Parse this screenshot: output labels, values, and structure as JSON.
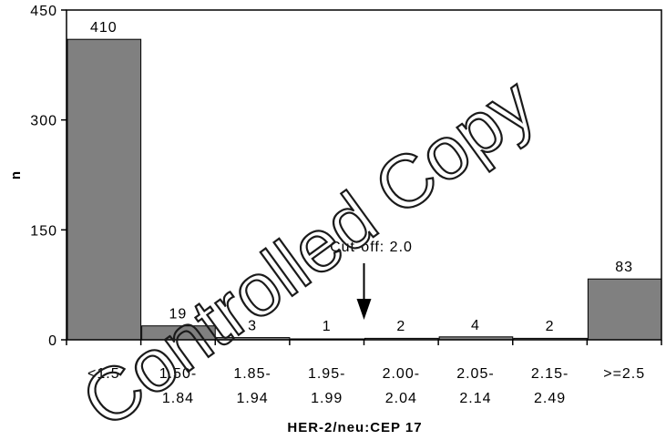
{
  "chart_data": {
    "type": "bar",
    "categories": [
      [
        "<1.5"
      ],
      [
        "1.50-",
        "1.84"
      ],
      [
        "1.85-",
        "1.94"
      ],
      [
        "1.95-",
        "1.99"
      ],
      [
        "2.00-",
        "2.04"
      ],
      [
        "2.05-",
        "2.14"
      ],
      [
        "2.15-",
        "2.49"
      ],
      [
        ">=2.5"
      ]
    ],
    "values": [
      410,
      19,
      3,
      1,
      2,
      4,
      2,
      83
    ],
    "data_labels": [
      "410",
      "19",
      "3",
      "1",
      "2",
      "4",
      "2",
      "83"
    ],
    "xlabel": "HER-2/neu:CEP 17",
    "ylabel": "n",
    "ylim": [
      0,
      450
    ],
    "yticks": [
      0,
      150,
      300,
      450
    ],
    "bar_color": "#808080",
    "grid": false,
    "annotation": {
      "text": "Cut-off: 2.0",
      "at_category_boundary": 4
    }
  },
  "watermark": {
    "text": "Controlled Copy"
  }
}
